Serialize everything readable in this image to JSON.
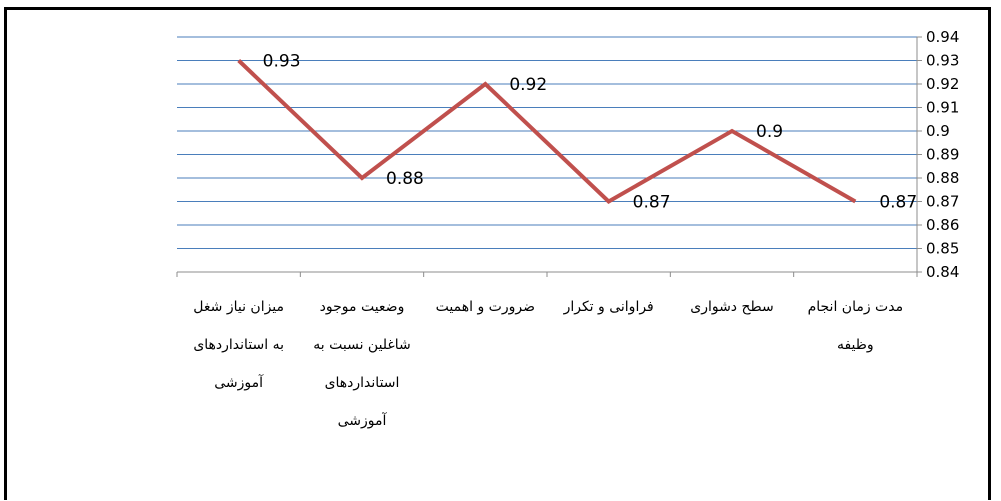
{
  "chart_data": {
    "type": "line",
    "categories": [
      [
        "میزان نیاز شغل",
        "به استانداردهای",
        "آموزشی"
      ],
      [
        "وضعیت موجود",
        "شاغلین نسبت به",
        "استانداردهای",
        "آموزشی"
      ],
      [
        "ضرورت و اهمیت"
      ],
      [
        "فراوانی و تکرار"
      ],
      [
        "سطح دشواری"
      ],
      [
        "مدت زمان انجام",
        "وظیفه"
      ]
    ],
    "series": [
      {
        "values": [
          0.93,
          0.88,
          0.92,
          0.87,
          0.9,
          0.87
        ]
      }
    ],
    "data_labels": [
      "0.93",
      "0.88",
      "0.92",
      "0.87",
      "0.9",
      "0.87"
    ],
    "y_ticks": [
      "0.84",
      "0.85",
      "0.86",
      "0.87",
      "0.88",
      "0.89",
      "0.9",
      "0.91",
      "0.92",
      "0.93",
      "0.94"
    ],
    "ylim": [
      0.84,
      0.94
    ],
    "y_axis_side": "right",
    "grid": true,
    "line_color": "#c0504d",
    "grid_color": "#4a7ebb"
  }
}
